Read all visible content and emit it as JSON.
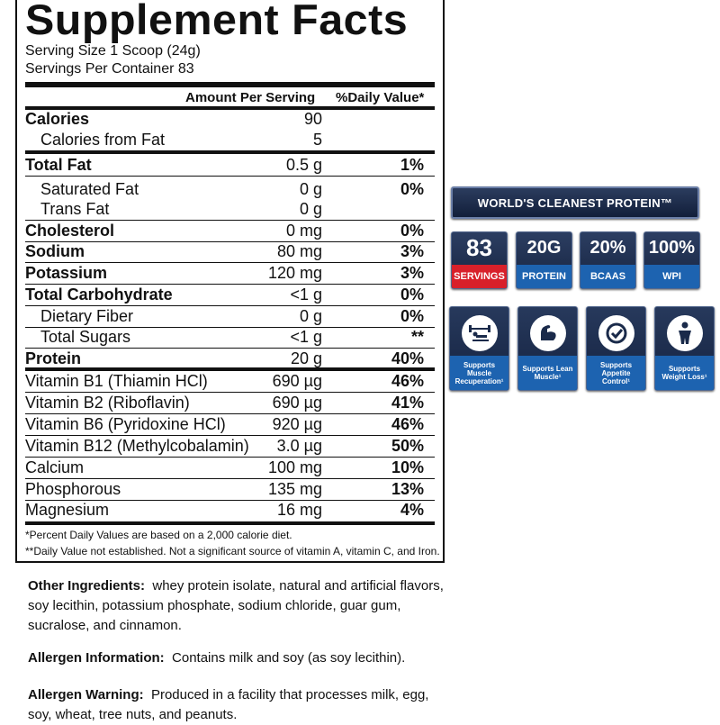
{
  "facts": {
    "title": "Supplement Facts",
    "serving_size": "Serving Size 1 Scoop (24g)",
    "servings_per_container": "Servings Per Container 83",
    "col_amount": "Amount Per Serving",
    "col_dv": "%Daily Value*",
    "rows": [
      {
        "name": "Calories",
        "amount": "90",
        "dv": ""
      },
      {
        "name": "Calories from Fat",
        "amount": "5",
        "dv": ""
      },
      {
        "name": "Total Fat",
        "amount": "0.5 g",
        "dv": "1%"
      },
      {
        "name": "Saturated Fat",
        "amount": "0 g",
        "dv": "0%"
      },
      {
        "name": "Trans Fat",
        "amount": "0 g",
        "dv": ""
      },
      {
        "name": "Cholesterol",
        "amount": "0 mg",
        "dv": "0%"
      },
      {
        "name": "Sodium",
        "amount": "80 mg",
        "dv": "3%"
      },
      {
        "name": "Potassium",
        "amount": "120 mg",
        "dv": "3%"
      },
      {
        "name": "Total Carbohydrate",
        "amount": "<1 g",
        "dv": "0%"
      },
      {
        "name": "Dietary Fiber",
        "amount": "0 g",
        "dv": "0%"
      },
      {
        "name": "Total Sugars",
        "amount": "<1 g",
        "dv": "**"
      },
      {
        "name": "Protein",
        "amount": "20 g",
        "dv": "40%"
      },
      {
        "name": "Vitamin B1 (Thiamin HCl)",
        "amount": "690 µg",
        "dv": "46%"
      },
      {
        "name": "Vitamin B2 (Riboflavin)",
        "amount": "690 µg",
        "dv": "41%"
      },
      {
        "name": "Vitamin B6 (Pyridoxine HCl)",
        "amount": "920 µg",
        "dv": "46%"
      },
      {
        "name": "Vitamin B12 (Methylcobalamin)",
        "amount": "3.0 µg",
        "dv": "50%"
      },
      {
        "name": "Calcium",
        "amount": "100 mg",
        "dv": "10%"
      },
      {
        "name": "Phosphorous",
        "amount": "135 mg",
        "dv": "13%"
      },
      {
        "name": "Magnesium",
        "amount": "16 mg",
        "dv": "4%"
      }
    ],
    "footnote_1": "*Percent Daily Values are based on a 2,000 calorie diet.",
    "footnote_2": "**Daily Value not established.  Not a significant source of vitamin A, vitamin C, and Iron."
  },
  "ingredients": {
    "label": "Other Ingredients:",
    "text": "whey protein isolate, natural and artificial flavors, soy lecithin, potassium phosphate, sodium chloride, guar gum,  sucralose, and cinnamon."
  },
  "allergen_info": {
    "label": "Allergen Information:",
    "text": "Contains milk and soy (as soy lecithin)."
  },
  "allergen_warning": {
    "label": "Allergen Warning:",
    "text": "Produced in a facility that processes milk, egg, soy, wheat, tree nuts, and peanuts."
  },
  "badges": {
    "banner": "WORLD'S CLEANEST PROTEIN™",
    "stats": [
      {
        "value": "83",
        "caption": "SERVINGS",
        "icon": ""
      },
      {
        "value": "20G",
        "caption": "PROTEIN",
        "icon": ""
      },
      {
        "value": "20%",
        "caption": "BCAAS",
        "icon": ""
      },
      {
        "value": "100%",
        "caption": "WPI",
        "icon": ""
      }
    ],
    "benefits": [
      {
        "caption": "Supports Muscle Recuperation¹",
        "icon": "bench-press-icon"
      },
      {
        "caption": "Supports Lean Muscle¹",
        "icon": "flexed-arm-icon"
      },
      {
        "caption": "Supports Appetite Control¹",
        "icon": "gauge-check-icon"
      },
      {
        "caption": "Supports Weight Loss¹",
        "icon": "person-figure-icon"
      }
    ],
    "colors": {
      "navy": "#1a2a4a",
      "blue": "#1d63b0",
      "red": "#d8202a"
    }
  }
}
